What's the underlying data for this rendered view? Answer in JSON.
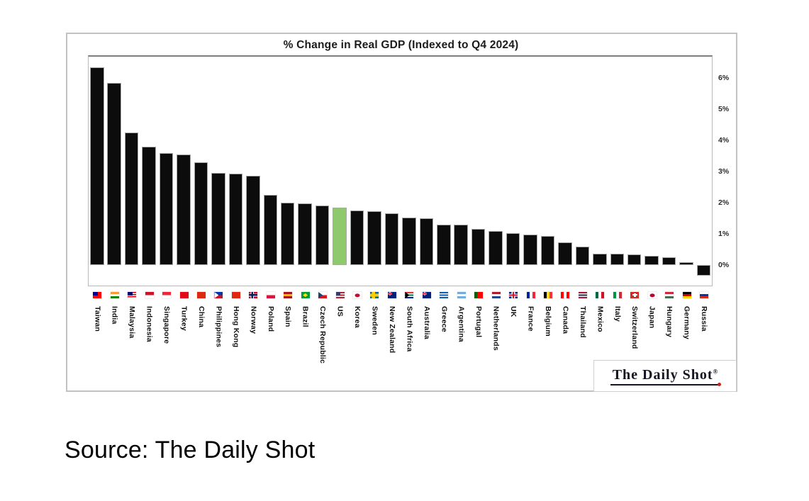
{
  "page": {
    "background": "#ffffff"
  },
  "source_caption": "Source: The Daily Shot",
  "logo": {
    "text": "The Daily Shot",
    "registered": "®",
    "dot_color": "#cc2222"
  },
  "chart_data": {
    "type": "bar",
    "title": "% Change in Real GDP (Indexed to Q4 2024)",
    "xlabel": "",
    "ylabel": "",
    "ylim": [
      -0.7,
      6.8
    ],
    "grid": false,
    "legend": false,
    "yaxis_side": "right",
    "bar_color": "#0c0c0c",
    "bar_outline": "#a8a8a8",
    "highlight": {
      "index": 14,
      "category": "US",
      "color": "#8fc96e"
    },
    "yticks": [
      {
        "label": "6%",
        "value": 6
      },
      {
        "label": "5%",
        "value": 5
      },
      {
        "label": "4%",
        "value": 4
      },
      {
        "label": "3%",
        "value": 3
      },
      {
        "label": "2%",
        "value": 2
      },
      {
        "label": "1%",
        "value": 1
      },
      {
        "label": "0%",
        "value": 0
      }
    ],
    "categories": [
      "Taiwan",
      "India",
      "Malaysia",
      "Indonesia",
      "Singapore",
      "Turkey",
      "China",
      "Philippines",
      "Hong Kong",
      "Norway",
      "Poland",
      "Spain",
      "Brazil",
      "Czech Republic",
      "US",
      "Korea",
      "Sweden",
      "New Zealand",
      "South Africa",
      "Australia",
      "Greece",
      "Argentina",
      "Portugal",
      "Netherlands",
      "UK",
      "France",
      "Belgium",
      "Canada",
      "Thailand",
      "Mexico",
      "Italy",
      "Switzerland",
      "Japan",
      "Hungary",
      "Germany",
      "Russia"
    ],
    "values": [
      6.35,
      5.85,
      4.25,
      3.8,
      3.6,
      3.55,
      3.3,
      2.95,
      2.93,
      2.86,
      2.25,
      2.0,
      1.98,
      1.9,
      1.85,
      1.75,
      1.72,
      1.66,
      1.52,
      1.5,
      1.3,
      1.3,
      1.15,
      1.1,
      1.02,
      0.98,
      0.93,
      0.73,
      0.6,
      0.36,
      0.36,
      0.33,
      0.3,
      0.25,
      0.08,
      -0.33
    ],
    "flags": [
      {
        "t": "canton",
        "c": [
          "#fe0000"
        ],
        "canton": "#000095"
      },
      {
        "t": "h",
        "c": [
          "#ff9933",
          "#ffffff",
          "#138808"
        ]
      },
      {
        "t": "canton",
        "c": [
          "#cc0001",
          "#ffffff",
          "#cc0001",
          "#ffffff",
          "#cc0001",
          "#ffffff"
        ],
        "canton": "#010066"
      },
      {
        "t": "h",
        "c": [
          "#ce1126",
          "#ffffff"
        ]
      },
      {
        "t": "h",
        "c": [
          "#ee2536",
          "#ffffff"
        ]
      },
      {
        "t": "solid",
        "c": "#e30a17"
      },
      {
        "t": "solid",
        "c": "#de2910"
      },
      {
        "t": "tri",
        "c": [
          "#0038a8",
          "#ce1126"
        ],
        "tri": "#ffffff"
      },
      {
        "t": "solid",
        "c": "#de2910"
      },
      {
        "t": "nordic",
        "bg": "#ba0c2f",
        "outer": "#ffffff",
        "inner": "#00205b"
      },
      {
        "t": "h",
        "c": [
          "#ffffff",
          "#dc143c"
        ]
      },
      {
        "t": "h",
        "c": [
          "#aa151b",
          "#f1bf00",
          "#aa151b"
        ]
      },
      {
        "t": "diamond",
        "bg": "#009c3b",
        "shape": "#ffdf00"
      },
      {
        "t": "tri",
        "c": [
          "#ffffff",
          "#d7141a"
        ],
        "tri": "#11457e"
      },
      {
        "t": "canton",
        "c": [
          "#b22234",
          "#ffffff",
          "#b22234",
          "#ffffff",
          "#b22234"
        ],
        "canton": "#3c3b6e"
      },
      {
        "t": "circle",
        "bg": "#ffffff",
        "dot": "#c60c30"
      },
      {
        "t": "nordic",
        "bg": "#006aa7",
        "outer": "#fecc00",
        "inner": "#fecc00"
      },
      {
        "t": "canton",
        "c": [
          "#00247d"
        ],
        "canton": "UK"
      },
      {
        "t": "tri",
        "c": [
          "#de3831",
          "#ffffff",
          "#007a4d",
          "#ffffff",
          "#002395"
        ],
        "tri": "#000000"
      },
      {
        "t": "canton",
        "c": [
          "#00247d"
        ],
        "canton": "UK"
      },
      {
        "t": "h",
        "c": [
          "#0d5eaf",
          "#ffffff",
          "#0d5eaf",
          "#ffffff",
          "#0d5eaf"
        ]
      },
      {
        "t": "h",
        "c": [
          "#74acdf",
          "#ffffff",
          "#74acdf"
        ]
      },
      {
        "t": "v",
        "c": [
          "#006600",
          "#ff0000",
          "#ff0000"
        ]
      },
      {
        "t": "h",
        "c": [
          "#ae1c28",
          "#ffffff",
          "#21468b"
        ]
      },
      {
        "t": "uk"
      },
      {
        "t": "v",
        "c": [
          "#002395",
          "#ffffff",
          "#ed2939"
        ]
      },
      {
        "t": "v",
        "c": [
          "#000000",
          "#fdda24",
          "#ef3340"
        ]
      },
      {
        "t": "v",
        "c": [
          "#ff0000",
          "#ffffff",
          "#ff0000"
        ]
      },
      {
        "t": "h",
        "c": [
          "#a51931",
          "#f4f5f8",
          "#2d2a4a",
          "#f4f5f8",
          "#a51931"
        ]
      },
      {
        "t": "v",
        "c": [
          "#006847",
          "#ffffff",
          "#ce1126"
        ]
      },
      {
        "t": "v",
        "c": [
          "#009246",
          "#ffffff",
          "#ce2b37"
        ]
      },
      {
        "t": "plus",
        "bg": "#d52b1e",
        "plus": "#ffffff"
      },
      {
        "t": "circle",
        "bg": "#ffffff",
        "dot": "#bc002d"
      },
      {
        "t": "h",
        "c": [
          "#cd2a3e",
          "#ffffff",
          "#436f4d"
        ]
      },
      {
        "t": "h",
        "c": [
          "#000000",
          "#dd0000",
          "#ffce00"
        ]
      },
      {
        "t": "h",
        "c": [
          "#ffffff",
          "#0039a6",
          "#d52b1e"
        ]
      }
    ]
  }
}
